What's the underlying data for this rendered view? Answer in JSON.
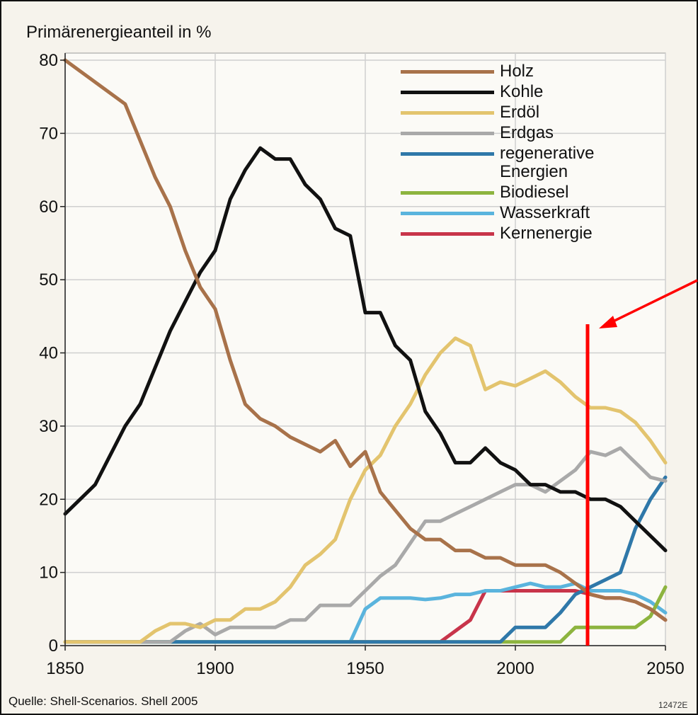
{
  "chart_data": {
    "type": "line",
    "y_label": "Primärenergieanteil in %",
    "source": "Quelle: Shell-Scenarios. Shell 2005",
    "code": "12472E",
    "xlim": [
      1850,
      2050
    ],
    "ylim": [
      0,
      80
    ],
    "xticks": [
      1850,
      1900,
      1950,
      2000,
      2050
    ],
    "yticks": [
      0,
      10,
      20,
      30,
      40,
      50,
      60,
      70,
      80
    ],
    "grid": true,
    "x": [
      1850,
      1855,
      1860,
      1865,
      1870,
      1875,
      1880,
      1885,
      1890,
      1895,
      1900,
      1905,
      1910,
      1915,
      1920,
      1925,
      1930,
      1935,
      1940,
      1945,
      1950,
      1955,
      1960,
      1965,
      1970,
      1975,
      1980,
      1985,
      1990,
      1995,
      2000,
      2005,
      2010,
      2015,
      2020,
      2025,
      2030,
      2035,
      2040,
      2045,
      2050
    ],
    "series": [
      {
        "name": "Holz",
        "color": "#a8724a",
        "values": [
          80,
          78.5,
          77,
          75.5,
          74,
          69,
          64,
          60,
          54,
          49,
          46,
          39,
          33,
          31,
          30,
          28.5,
          27.5,
          26.5,
          28,
          24.5,
          26.5,
          21,
          18.5,
          16,
          14.5,
          14.5,
          13,
          13,
          12,
          12,
          11,
          11,
          11,
          10,
          8.5,
          7,
          6.5,
          6.5,
          6,
          5,
          3.5
        ]
      },
      {
        "name": "Kohle",
        "color": "#111111",
        "values": [
          18,
          20,
          22,
          26,
          30,
          33,
          38,
          43,
          47,
          51,
          54,
          61,
          65,
          68,
          66.5,
          66.5,
          63,
          61,
          57,
          56,
          45.5,
          45.5,
          41,
          39,
          32,
          29,
          25,
          25,
          27,
          25,
          24,
          22,
          22,
          21,
          21,
          20,
          20,
          19,
          17,
          15,
          13
        ]
      },
      {
        "name": "Erdöl",
        "color": "#e3c46e",
        "values": [
          0.5,
          0.5,
          0.5,
          0.5,
          0.5,
          0.5,
          2,
          3,
          3,
          2.5,
          3.5,
          3.5,
          5,
          5,
          6,
          8,
          11,
          12.5,
          14.5,
          20,
          24,
          26,
          30,
          33,
          37,
          40,
          42,
          41,
          35,
          36,
          35.5,
          36.5,
          37.5,
          36,
          34,
          32.5,
          32.5,
          32,
          30.5,
          28,
          25
        ]
      },
      {
        "name": "Erdgas",
        "color": "#a9a9a9",
        "values": [
          0.5,
          0.5,
          0.5,
          0.5,
          0.5,
          0.5,
          0.5,
          0.5,
          2,
          3,
          1.5,
          2.5,
          2.5,
          2.5,
          2.5,
          3.5,
          3.5,
          5.5,
          5.5,
          5.5,
          7.5,
          9.5,
          11,
          14,
          17,
          17,
          18,
          19,
          20,
          21,
          22,
          22,
          21,
          22.5,
          24,
          26.5,
          26,
          27,
          25,
          23,
          22.5
        ]
      },
      {
        "name": "regenerative Energien",
        "color": "#2f78a9",
        "values": [
          0.5,
          0.5,
          0.5,
          0.5,
          0.5,
          0.5,
          0.5,
          0.5,
          0.5,
          0.5,
          0.5,
          0.5,
          0.5,
          0.5,
          0.5,
          0.5,
          0.5,
          0.5,
          0.5,
          0.5,
          0.5,
          0.5,
          0.5,
          0.5,
          0.5,
          0.5,
          0.5,
          0.5,
          0.5,
          0.5,
          2.5,
          2.5,
          2.5,
          4.5,
          7,
          8,
          9,
          10,
          16,
          20,
          23
        ]
      },
      {
        "name": "Biodiesel",
        "color": "#8db43f",
        "values": [
          0.5,
          0.5,
          0.5,
          0.5,
          0.5,
          0.5,
          0.5,
          0.5,
          0.5,
          0.5,
          0.5,
          0.5,
          0.5,
          0.5,
          0.5,
          0.5,
          0.5,
          0.5,
          0.5,
          0.5,
          0.5,
          0.5,
          0.5,
          0.5,
          0.5,
          0.5,
          0.5,
          0.5,
          0.5,
          0.5,
          0.5,
          0.5,
          0.5,
          0.5,
          2.5,
          2.5,
          2.5,
          2.5,
          2.5,
          4,
          8
        ]
      },
      {
        "name": "Wasserkraft",
        "color": "#5ab4dd",
        "values": [
          0.5,
          0.5,
          0.5,
          0.5,
          0.5,
          0.5,
          0.5,
          0.5,
          0.5,
          0.5,
          0.5,
          0.5,
          0.5,
          0.5,
          0.5,
          0.5,
          0.5,
          0.5,
          0.5,
          0.5,
          5,
          6.5,
          6.5,
          6.5,
          6.3,
          6.5,
          7,
          7,
          7.5,
          7.5,
          8,
          8.5,
          8,
          8,
          8.5,
          7.5,
          7.5,
          7.5,
          7,
          6,
          4.5
        ]
      },
      {
        "name": "Kernenergie",
        "color": "#c8344a",
        "values": [
          null,
          null,
          null,
          null,
          null,
          null,
          null,
          null,
          null,
          null,
          null,
          null,
          null,
          null,
          null,
          null,
          null,
          null,
          null,
          0.5,
          0.5,
          0.5,
          0.5,
          0.5,
          0.5,
          0.5,
          2,
          3.5,
          7.5,
          7.5,
          7.5,
          7.5,
          7.5,
          7.5,
          7.5,
          7,
          6.5,
          6.5,
          6,
          5,
          3.5
        ]
      }
    ]
  }
}
